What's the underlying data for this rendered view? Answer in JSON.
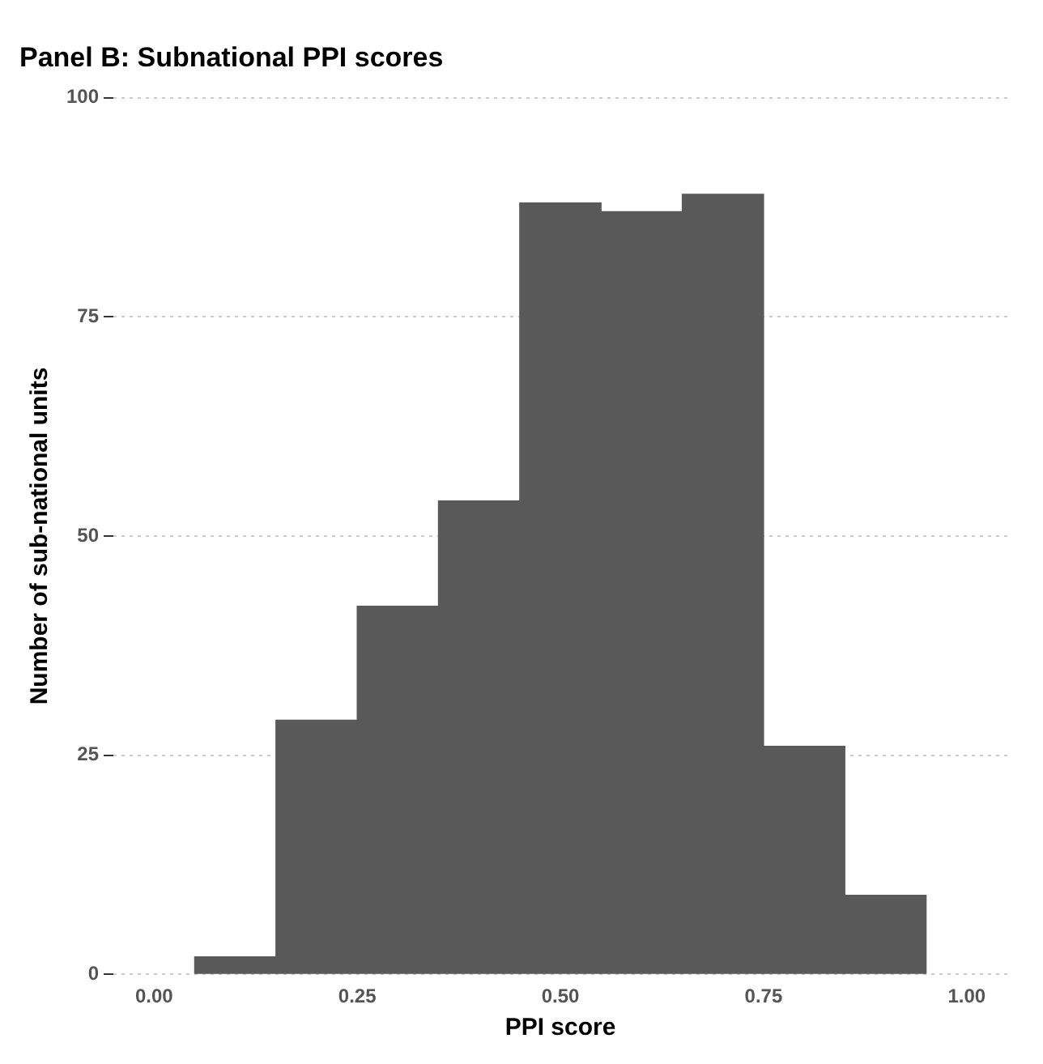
{
  "chart_data": {
    "type": "histogram",
    "title": "Panel B: Subnational PPI scores",
    "xlabel": "PPI score",
    "ylabel": "Number of sub-national units",
    "bins": [
      0.05,
      0.15,
      0.25,
      0.35,
      0.45,
      0.55,
      0.65,
      0.75,
      0.85,
      0.95
    ],
    "values": [
      2,
      29,
      42,
      54,
      88,
      87,
      89,
      26,
      9
    ],
    "color": "#595959",
    "xlim": [
      -0.05,
      1.05
    ],
    "xticks": [
      {
        "value": 0,
        "label": "0.00"
      },
      {
        "value": 0.25,
        "label": "0.25"
      },
      {
        "value": 0.5,
        "label": "0.50"
      },
      {
        "value": 0.75,
        "label": "0.75"
      },
      {
        "value": 1,
        "label": "1.00"
      }
    ],
    "ylim": [
      0,
      100
    ],
    "yticks": [
      0,
      25,
      50,
      75,
      100
    ],
    "grid": "y"
  }
}
